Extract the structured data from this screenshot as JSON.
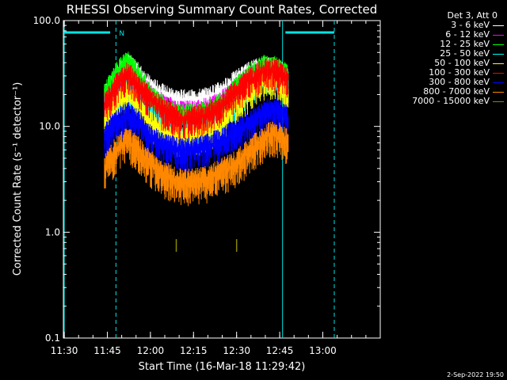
{
  "chart_data": {
    "type": "line",
    "title": "RHESSI Observing Summary Count Rates, Corrected",
    "xlabel": "Start Time (16-Mar-18 11:29:42)",
    "ylabel": "Corrected Count Rate (s⁻¹ detector⁻¹)",
    "y_scale": "log",
    "ylim": [
      0.1,
      100.0
    ],
    "xlim": [
      "11:29:42",
      "13:20:00"
    ],
    "x_ticks": [
      "11:30",
      "11:45",
      "12:00",
      "12:15",
      "12:30",
      "12:45",
      "13:00"
    ],
    "y_ticks": [
      "0.1",
      "1.0",
      "10.0",
      "100.0"
    ],
    "grid": false,
    "legend_position": "right",
    "legend_header": "Det 3, Att 0",
    "annotations": {
      "n_flag": "N",
      "vertical_markers": [
        "11:30",
        "11:48",
        "12:46",
        "13:04"
      ],
      "flag_bars": [
        [
          "11:30",
          "11:46"
        ],
        [
          "12:47",
          "13:04"
        ]
      ]
    },
    "series": [
      {
        "name": "3 - 6 keV",
        "color": "#ffffff",
        "x": [
          "11:44",
          "11:48",
          "11:52",
          "11:56",
          "12:00",
          "12:05",
          "12:10",
          "12:15",
          "12:20",
          "12:25",
          "12:30",
          "12:35",
          "12:40",
          "12:44",
          "12:48"
        ],
        "values": [
          20,
          30,
          40,
          32,
          24,
          20,
          18,
          18,
          19,
          22,
          28,
          34,
          38,
          36,
          30
        ]
      },
      {
        "name": "6 - 12 keV",
        "color": "#ff00ff",
        "x": [
          "11:44",
          "11:48",
          "11:52",
          "11:56",
          "12:00",
          "12:05",
          "12:10",
          "12:15",
          "12:20",
          "12:25",
          "12:30",
          "12:35",
          "12:40",
          "12:44",
          "12:48"
        ],
        "values": [
          18,
          28,
          36,
          28,
          20,
          16,
          14,
          14,
          15,
          18,
          24,
          30,
          35,
          34,
          28
        ]
      },
      {
        "name": "12 - 25 keV",
        "color": "#00ff00",
        "x": [
          "11:44",
          "11:48",
          "11:52",
          "11:56",
          "12:00",
          "12:05",
          "12:10",
          "12:15",
          "12:20",
          "12:25",
          "12:30",
          "12:35",
          "12:40",
          "12:44",
          "12:48"
        ],
        "values": [
          20,
          32,
          42,
          30,
          20,
          15,
          13,
          13,
          14,
          17,
          24,
          32,
          38,
          36,
          30
        ]
      },
      {
        "name": "25 - 50 keV",
        "color": "#00ffff",
        "x": [
          "11:44",
          "11:48",
          "11:52",
          "11:56",
          "12:00",
          "12:05",
          "12:10",
          "12:15",
          "12:20",
          "12:25",
          "12:30",
          "12:35",
          "12:40",
          "12:44",
          "12:48"
        ],
        "values": [
          12,
          18,
          24,
          18,
          13,
          10,
          9,
          9,
          10,
          12,
          17,
          24,
          30,
          28,
          24
        ]
      },
      {
        "name": "50 - 100 keV",
        "color": "#ffff00",
        "x": [
          "11:44",
          "11:48",
          "11:52",
          "11:56",
          "12:00",
          "12:05",
          "12:10",
          "12:15",
          "12:20",
          "12:25",
          "12:30",
          "12:35",
          "12:40",
          "12:44",
          "12:48"
        ],
        "values": [
          11,
          17,
          21,
          16,
          11,
          9,
          8,
          8,
          9,
          11,
          16,
          22,
          28,
          27,
          22
        ]
      },
      {
        "name": "100 - 300 keV",
        "color": "#ff0000",
        "x": [
          "11:44",
          "11:48",
          "11:52",
          "11:56",
          "12:00",
          "12:05",
          "12:10",
          "12:15",
          "12:20",
          "12:25",
          "12:30",
          "12:35",
          "12:40",
          "12:44",
          "12:48"
        ],
        "values": [
          16,
          24,
          32,
          24,
          18,
          14,
          12,
          12,
          13,
          16,
          22,
          28,
          34,
          33,
          28
        ]
      },
      {
        "name": "300 - 800 keV",
        "color": "#0000ff",
        "x": [
          "11:44",
          "11:48",
          "11:52",
          "11:56",
          "12:00",
          "12:05",
          "12:10",
          "12:15",
          "12:20",
          "12:25",
          "12:30",
          "12:35",
          "12:40",
          "12:44",
          "12:48"
        ],
        "values": [
          8,
          11,
          13,
          11,
          8,
          6.5,
          6,
          6,
          6.5,
          7.5,
          9,
          11,
          14,
          14,
          12
        ]
      },
      {
        "name": "800 - 7000 keV",
        "color": "#ff8800",
        "x": [
          "11:44",
          "11:48",
          "11:52",
          "11:56",
          "12:00",
          "12:05",
          "12:10",
          "12:15",
          "12:20",
          "12:25",
          "12:30",
          "12:35",
          "12:40",
          "12:44",
          "12:48"
        ],
        "values": [
          4,
          6,
          7.5,
          6,
          4.5,
          3.5,
          3,
          3,
          3.2,
          3.8,
          4.5,
          6,
          8,
          8.5,
          7
        ]
      },
      {
        "name": "7000 - 15000 keV",
        "color": "#888800",
        "x": [
          "12:09",
          "12:30"
        ],
        "values": [
          0.75,
          0.75
        ]
      }
    ]
  },
  "footer": {
    "timestamp": "2-Sep-2022 19:50"
  }
}
